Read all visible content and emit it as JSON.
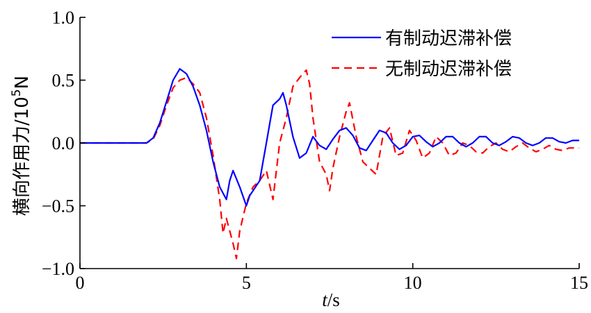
{
  "chart_data": {
    "type": "line",
    "xlabel_italic": "t",
    "xlabel_unit": "/s",
    "ylabel_main": "横向作用力/10",
    "ylabel_sup": "5",
    "ylabel_unit": "N",
    "xlim": [
      0,
      15
    ],
    "ylim": [
      -1.0,
      1.0
    ],
    "xticks": [
      0,
      5,
      10,
      15
    ],
    "xtick_labels": [
      "0",
      "5",
      "10",
      "15"
    ],
    "yticks": [
      1.0,
      0.5,
      0.0,
      -0.5,
      -1.0
    ],
    "ytick_labels": [
      "1.0",
      "0.5",
      "0.0",
      "−0.5",
      "−1.0"
    ],
    "grid": false,
    "legend_position": "top-right",
    "series": [
      {
        "name": "有制动迟滞补偿",
        "color": "#0000ff",
        "dash": "solid",
        "x": [
          0,
          2.0,
          2.2,
          2.4,
          2.6,
          2.8,
          3.0,
          3.1,
          3.2,
          3.4,
          3.6,
          3.8,
          4.0,
          4.2,
          4.4,
          4.5,
          4.6,
          4.8,
          5.0,
          5.1,
          5.2,
          5.4,
          5.6,
          5.7,
          5.8,
          6.0,
          6.1,
          6.2,
          6.4,
          6.6,
          6.8,
          7.0,
          7.2,
          7.4,
          7.6,
          7.8,
          8.0,
          8.2,
          8.4,
          8.6,
          8.8,
          9.0,
          9.2,
          9.4,
          9.6,
          9.8,
          10.0,
          10.2,
          10.4,
          10.6,
          10.8,
          11.0,
          11.2,
          11.4,
          11.6,
          11.8,
          12.0,
          12.2,
          12.4,
          12.6,
          12.8,
          13.0,
          13.2,
          13.4,
          13.6,
          13.8,
          14.0,
          14.2,
          14.4,
          14.6,
          14.8,
          15.0
        ],
        "y": [
          0.0,
          0.0,
          0.04,
          0.16,
          0.33,
          0.5,
          0.59,
          0.57,
          0.55,
          0.45,
          0.3,
          0.1,
          -0.15,
          -0.35,
          -0.45,
          -0.3,
          -0.22,
          -0.35,
          -0.5,
          -0.42,
          -0.38,
          -0.3,
          0.0,
          0.15,
          0.3,
          0.35,
          0.4,
          0.3,
          0.05,
          -0.12,
          -0.08,
          0.05,
          -0.02,
          -0.05,
          0.03,
          0.1,
          0.12,
          0.06,
          -0.04,
          -0.06,
          0.02,
          0.1,
          0.08,
          0.0,
          -0.05,
          -0.02,
          0.05,
          0.06,
          0.01,
          -0.03,
          0.0,
          0.05,
          0.05,
          0.0,
          -0.03,
          0.0,
          0.05,
          0.05,
          0.0,
          -0.02,
          0.01,
          0.05,
          0.04,
          0.0,
          -0.02,
          0.0,
          0.04,
          0.04,
          0.01,
          0.0,
          0.02,
          0.02
        ]
      },
      {
        "name": "无制动迟滞补偿",
        "color": "#ff0000",
        "dash": "dashed",
        "x": [
          0,
          2.0,
          2.2,
          2.4,
          2.6,
          2.8,
          3.0,
          3.2,
          3.4,
          3.6,
          3.8,
          4.0,
          4.2,
          4.3,
          4.4,
          4.6,
          4.7,
          4.8,
          5.0,
          5.2,
          5.4,
          5.6,
          5.8,
          6.0,
          6.2,
          6.4,
          6.6,
          6.8,
          6.9,
          7.0,
          7.2,
          7.4,
          7.5,
          7.6,
          7.8,
          8.0,
          8.1,
          8.3,
          8.5,
          8.7,
          8.9,
          9.1,
          9.3,
          9.5,
          9.7,
          9.9,
          10.1,
          10.3,
          10.5,
          10.7,
          10.9,
          11.1,
          11.3,
          11.5,
          11.7,
          11.9,
          12.1,
          12.3,
          12.5,
          12.7,
          12.9,
          13.1,
          13.3,
          13.5,
          13.7,
          13.9,
          14.1,
          14.3,
          14.5,
          14.7,
          15.0
        ],
        "y": [
          0.0,
          0.0,
          0.03,
          0.14,
          0.3,
          0.44,
          0.5,
          0.52,
          0.47,
          0.4,
          0.2,
          -0.1,
          -0.45,
          -0.72,
          -0.6,
          -0.8,
          -0.92,
          -0.7,
          -0.48,
          -0.35,
          -0.3,
          -0.22,
          -0.45,
          0.0,
          0.2,
          0.45,
          0.52,
          0.58,
          0.47,
          0.2,
          -0.15,
          -0.25,
          -0.38,
          -0.2,
          0.05,
          0.25,
          0.32,
          0.05,
          -0.15,
          -0.2,
          -0.25,
          0.05,
          0.12,
          -0.1,
          -0.08,
          0.1,
          0.02,
          -0.12,
          -0.08,
          0.05,
          0.0,
          -0.1,
          -0.08,
          0.0,
          -0.02,
          -0.07,
          -0.08,
          -0.03,
          0.0,
          -0.05,
          -0.07,
          -0.03,
          0.0,
          -0.04,
          -0.07,
          -0.05,
          -0.02,
          -0.05,
          -0.06,
          -0.04,
          -0.04
        ]
      }
    ]
  }
}
